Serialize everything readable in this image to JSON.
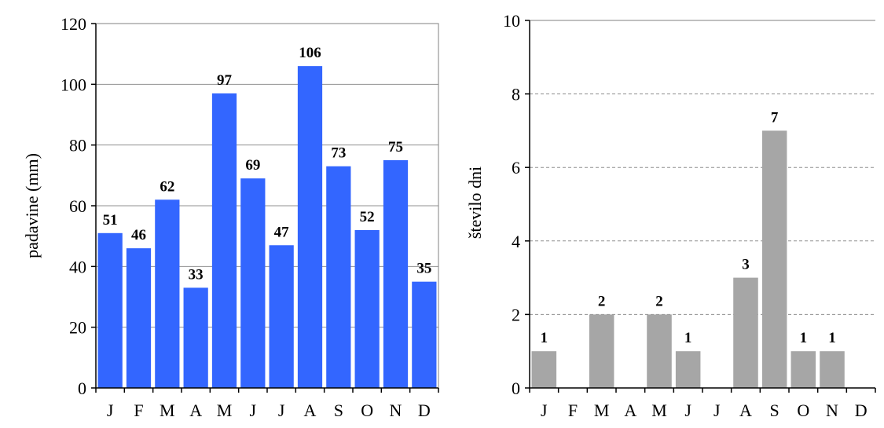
{
  "chart_data": [
    {
      "type": "bar",
      "categories": [
        "J",
        "F",
        "M",
        "A",
        "M",
        "J",
        "J",
        "A",
        "S",
        "O",
        "N",
        "D"
      ],
      "values": [
        51,
        46,
        62,
        33,
        97,
        69,
        47,
        106,
        73,
        52,
        75,
        35
      ],
      "data_labels": [
        "51",
        "46",
        "62",
        "33",
        "97",
        "69",
        "47",
        "106",
        "73",
        "52",
        "75",
        "35"
      ],
      "title": "",
      "xlabel": "",
      "ylabel": "padavine (mm)",
      "ylim": [
        0,
        120
      ],
      "yticks": [
        0,
        20,
        40,
        60,
        80,
        100,
        120
      ],
      "grid": "solid",
      "bar_color": "#3366ff"
    },
    {
      "type": "bar",
      "categories": [
        "J",
        "F",
        "M",
        "A",
        "M",
        "J",
        "J",
        "A",
        "S",
        "O",
        "N",
        "D"
      ],
      "values": [
        1,
        0,
        2,
        0,
        2,
        1,
        0,
        3,
        7,
        1,
        1,
        0
      ],
      "data_labels": [
        "1",
        "",
        "2",
        "",
        "2",
        "1",
        "",
        "3",
        "7",
        "1",
        "1",
        ""
      ],
      "title": "",
      "xlabel": "",
      "ylabel": "število dni",
      "ylim": [
        0,
        10
      ],
      "yticks": [
        0,
        2,
        4,
        6,
        8,
        10
      ],
      "grid": "dashed",
      "bar_color": "#a6a6a6"
    }
  ]
}
